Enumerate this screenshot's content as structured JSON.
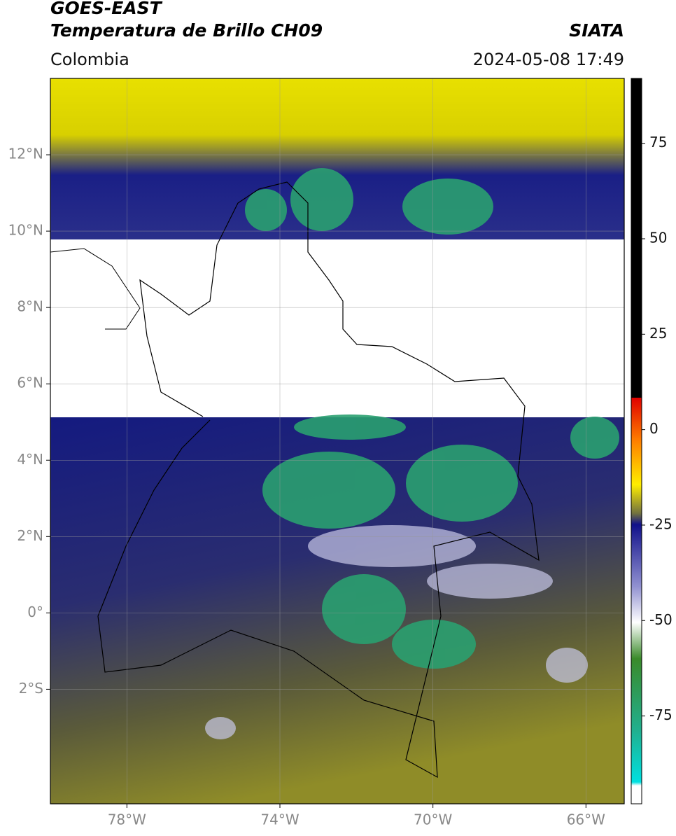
{
  "header": {
    "title": "GOES-EAST",
    "subtitle": "Temperatura de Brillo CH09",
    "region": "Colombia",
    "source": "SIATA",
    "datetime": "2024-05-08 17:49"
  },
  "map": {
    "xlim": [
      -80,
      -65
    ],
    "ylim": [
      -5,
      14
    ],
    "xticks": [
      {
        "value": -78,
        "label": "78°W"
      },
      {
        "value": -74,
        "label": "74°W"
      },
      {
        "value": -70,
        "label": "70°W"
      },
      {
        "value": -66,
        "label": "66°W"
      }
    ],
    "yticks": [
      {
        "value": 12,
        "label": "12°N"
      },
      {
        "value": 10,
        "label": "10°N"
      },
      {
        "value": 8,
        "label": "8°N"
      },
      {
        "value": 6,
        "label": "6°N"
      },
      {
        "value": 4,
        "label": "4°N"
      },
      {
        "value": 2,
        "label": "2°N"
      },
      {
        "value": 0,
        "label": "0°"
      },
      {
        "value": -2,
        "label": "2°S"
      }
    ],
    "grid": true
  },
  "colorbar": {
    "lim": [
      -98,
      92
    ],
    "ticks": [
      75,
      50,
      25,
      0,
      -25,
      -50,
      -75
    ]
  }
}
